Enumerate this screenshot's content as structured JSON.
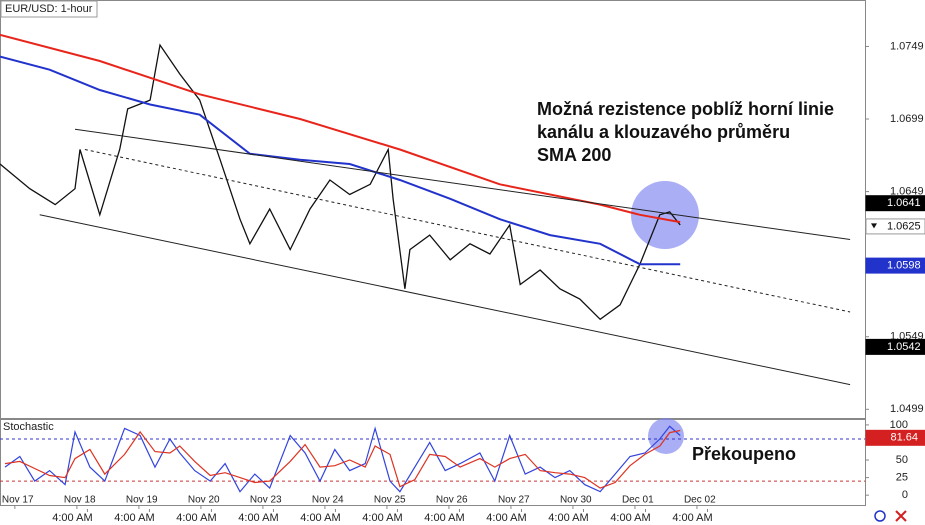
{
  "chart_data": [
    {
      "type": "line",
      "title": "EUR/USD: 1-hour",
      "annotation": [
        "Možná rezistence poblíž horní linie",
        "kanálu a klouzavého průměru",
        "SMA 200"
      ],
      "xlim": [
        -0.24,
        13.71
      ],
      "ylim": [
        1.0493,
        1.0781
      ],
      "yticks": [
        1.0749,
        1.0699,
        1.0649,
        1.0549,
        1.0499
      ],
      "price_markers": [
        {
          "value": 1.0641,
          "color": "#000000"
        },
        {
          "value": 1.0625,
          "color": "#ffffff"
        },
        {
          "value": 1.0598,
          "color": "#2233cc"
        },
        {
          "value": 1.0542,
          "color": "#000000"
        }
      ],
      "series": [
        {
          "color": "#111111",
          "width": 1.3,
          "x": [
            -0.24,
            0.24,
            0.65,
            0.97,
            1.05,
            1.37,
            1.69,
            1.82,
            2.18,
            2.34,
            2.66,
            2.98,
            3.31,
            3.63,
            3.79,
            4.11,
            4.44,
            4.76,
            5.08,
            5.4,
            5.73,
            6.02,
            6.1,
            6.29,
            6.37,
            6.69,
            7.02,
            7.34,
            7.66,
            7.98,
            8.15,
            8.47,
            8.79,
            9.11,
            9.44,
            9.76,
            10.08,
            10.4,
            10.56,
            10.73
          ],
          "values": [
            1.0668,
            1.0651,
            1.064,
            1.0651,
            1.0678,
            1.0633,
            1.0678,
            1.0706,
            1.0712,
            1.075,
            1.073,
            1.0712,
            1.0671,
            1.063,
            1.0613,
            1.0637,
            1.0609,
            1.0637,
            1.0657,
            1.0647,
            1.0654,
            1.0678,
            1.0644,
            1.0582,
            1.0609,
            1.0619,
            1.0602,
            1.0613,
            1.0606,
            1.0626,
            1.0585,
            1.0595,
            1.0582,
            1.0575,
            1.0561,
            1.0571,
            1.0599,
            1.0633,
            1.0635,
            1.0626
          ]
        },
        {
          "color": "#e8251b",
          "width": 2,
          "x": [
            -0.24,
            1.37,
            2.98,
            4.6,
            6.21,
            7.82,
            9.44,
            10.08,
            10.73
          ],
          "values": [
            1.0757,
            1.0739,
            1.0716,
            1.0699,
            1.0678,
            1.0654,
            1.064,
            1.0633,
            1.0628
          ]
        },
        {
          "color": "#2233cc",
          "width": 2,
          "x": [
            -0.24,
            0.56,
            1.37,
            2.18,
            2.98,
            3.79,
            4.6,
            5.4,
            6.21,
            7.02,
            7.82,
            8.63,
            9.44,
            10.08,
            10.73
          ],
          "values": [
            1.0742,
            1.0733,
            1.0719,
            1.0709,
            1.0702,
            1.0675,
            1.0671,
            1.0668,
            1.0657,
            1.0644,
            1.063,
            1.0619,
            1.0613,
            1.0599,
            1.0599
          ]
        },
        {
          "color": "#222222",
          "width": 1,
          "x": [
            0.97,
            13.47
          ],
          "values": [
            1.0692,
            1.0616
          ]
        },
        {
          "color": "#222222",
          "width": 1,
          "dash": true,
          "x": [
            1.13,
            13.47
          ],
          "values": [
            1.0678,
            1.0566
          ]
        },
        {
          "color": "#222222",
          "width": 1,
          "x": [
            0.4,
            13.47
          ],
          "values": [
            1.0633,
            1.0516
          ]
        }
      ]
    },
    {
      "type": "line",
      "title": "Stochastic",
      "annotation": [
        "Překoupeno"
      ],
      "xlim": [
        -0.24,
        13.71
      ],
      "ylim": [
        -14,
        107
      ],
      "yticks": [
        100,
        50,
        25,
        0
      ],
      "price_markers": [
        {
          "value": 81.64,
          "color": "#d42020"
        }
      ],
      "levels": [
        {
          "value": 80,
          "color": "#3333cc"
        },
        {
          "value": 20,
          "color": "#cc3333"
        }
      ],
      "xticks": [
        {
          "value": 0,
          "label": "Nov 17"
        },
        {
          "value": 1,
          "label": "Nov 18"
        },
        {
          "value": 2,
          "label": "Nov 19"
        },
        {
          "value": 3,
          "label": "Nov 20"
        },
        {
          "value": 4,
          "label": "Nov 23"
        },
        {
          "value": 5,
          "label": "Nov 24"
        },
        {
          "value": 6,
          "label": "Nov 25"
        },
        {
          "value": 7,
          "label": "Nov 26"
        },
        {
          "value": 8,
          "label": "Nov 27"
        },
        {
          "value": 9,
          "label": "Nov 30"
        },
        {
          "value": 10,
          "label": "Dec 01"
        },
        {
          "value": 11,
          "label": "Dec 02"
        }
      ],
      "xticks2": [
        {
          "value": 1.17,
          "label": "4:00 AM"
        },
        {
          "value": 2.17,
          "label": "4:00 AM"
        },
        {
          "value": 3.17,
          "label": "4:00 AM"
        },
        {
          "value": 4.17,
          "label": "4:00 AM"
        },
        {
          "value": 5.17,
          "label": "4:00 AM"
        },
        {
          "value": 6.17,
          "label": "4:00 AM"
        },
        {
          "value": 7.17,
          "label": "4:00 AM"
        },
        {
          "value": 8.17,
          "label": "4:00 AM"
        },
        {
          "value": 9.17,
          "label": "4:00 AM"
        },
        {
          "value": 10.17,
          "label": "4:00 AM"
        },
        {
          "value": 11.17,
          "label": "4:00 AM"
        }
      ],
      "series": [
        {
          "color": "#3344dd",
          "width": 1.2,
          "x": [
            -0.16,
            0.08,
            0.32,
            0.56,
            0.81,
            0.97,
            1.21,
            1.45,
            1.77,
            2.02,
            2.26,
            2.5,
            2.66,
            2.9,
            3.15,
            3.39,
            3.63,
            3.87,
            4.11,
            4.44,
            4.68,
            4.92,
            5.16,
            5.4,
            5.65,
            5.81,
            6.05,
            6.21,
            6.45,
            6.69,
            6.94,
            7.18,
            7.5,
            7.74,
            7.98,
            8.23,
            8.47,
            8.71,
            8.95,
            9.19,
            9.44,
            9.68,
            9.92,
            10.16,
            10.4,
            10.56,
            10.73
          ],
          "values": [
            40,
            55,
            20,
            35,
            15,
            90,
            40,
            20,
            95,
            85,
            40,
            80,
            60,
            35,
            20,
            45,
            5,
            30,
            10,
            85,
            60,
            20,
            65,
            35,
            45,
            95,
            20,
            5,
            40,
            75,
            35,
            45,
            60,
            20,
            85,
            30,
            40,
            25,
            35,
            15,
            5,
            30,
            55,
            60,
            80,
            98,
            85
          ]
        },
        {
          "color": "#dd3322",
          "width": 1.2,
          "x": [
            -0.16,
            0.08,
            0.32,
            0.56,
            0.81,
            0.97,
            1.21,
            1.45,
            1.77,
            2.02,
            2.26,
            2.5,
            2.66,
            2.9,
            3.15,
            3.39,
            3.63,
            3.87,
            4.11,
            4.44,
            4.68,
            4.92,
            5.16,
            5.4,
            5.65,
            5.81,
            6.05,
            6.21,
            6.45,
            6.69,
            6.94,
            7.18,
            7.5,
            7.74,
            7.98,
            8.23,
            8.47,
            8.71,
            8.95,
            9.19,
            9.44,
            9.68,
            9.92,
            10.16,
            10.4,
            10.56,
            10.73
          ],
          "values": [
            45,
            48,
            38,
            28,
            25,
            52,
            65,
            30,
            58,
            90,
            62,
            60,
            70,
            48,
            28,
            32,
            25,
            18,
            20,
            48,
            72,
            40,
            42,
            50,
            40,
            70,
            58,
            12,
            22,
            58,
            55,
            40,
            52,
            40,
            52,
            58,
            35,
            32,
            30,
            25,
            10,
            18,
            42,
            58,
            70,
            89,
            92
          ]
        }
      ]
    }
  ]
}
